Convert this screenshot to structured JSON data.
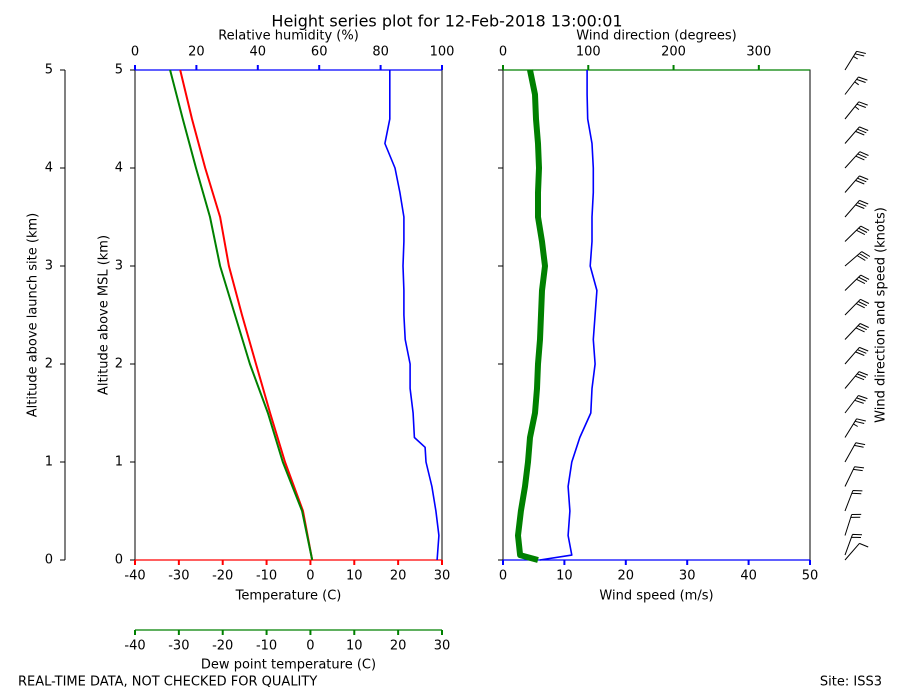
{
  "title": "Height series plot for 12-Feb-2018 13:00:01",
  "footer_left": "REAL-TIME DATA, NOT CHECKED FOR QUALITY",
  "footer_right": "Site: ISS3",
  "outer_axis": {
    "label": "Altitude above launch site (km)",
    "ylim": [
      0,
      5
    ],
    "yticks": [
      0,
      1,
      2,
      3,
      4,
      5
    ]
  },
  "chart_data": [
    {
      "type": "profile",
      "ylabel": "Altitude above MSL (km)",
      "ylim": [
        0,
        5
      ],
      "yticks": [
        0,
        1,
        2,
        3,
        4,
        5
      ],
      "ytick_labels": true,
      "xaxis": {
        "label": "Temperature (C)",
        "color": "#ff0000",
        "xlim": [
          -40,
          30
        ],
        "xticks": [
          -40,
          -30,
          -20,
          -10,
          0,
          10,
          20,
          30
        ]
      },
      "xaxis_top": {
        "label": "Relative humidity (%)",
        "color": "#0000ff",
        "xlim": [
          0,
          100
        ],
        "xticks": [
          0,
          20,
          40,
          60,
          80,
          100
        ]
      },
      "xaxis_bottom2": {
        "label": "Dew point temperature (C)",
        "color": "#008000",
        "xlim": [
          -40,
          30
        ],
        "xticks": [
          -40,
          -30,
          -20,
          -10,
          0,
          10,
          20,
          30
        ]
      },
      "series": [
        {
          "axis": "xaxis",
          "color": "#ff0000",
          "width": 2,
          "values": [
            0.4,
            -1.7,
            -5.8,
            -9.2,
            -12.4,
            -15.6,
            -18.6,
            -20.6,
            -24,
            -27,
            -29.7
          ],
          "altitude": [
            0,
            0.5,
            1,
            1.5,
            2,
            2.5,
            3,
            3.5,
            4,
            4.5,
            5
          ]
        },
        {
          "axis": "xaxis_bottom2",
          "color": "#008000",
          "width": 2,
          "values": [
            0.4,
            -1.9,
            -6.3,
            -9.7,
            -13.8,
            -17.2,
            -20.6,
            -22.9,
            -26.1,
            -29.1,
            -32
          ],
          "altitude": [
            0,
            0.5,
            1,
            1.5,
            2,
            2.5,
            3,
            3.5,
            4,
            4.5,
            5
          ]
        },
        {
          "axis": "xaxis_top",
          "color": "#0000ff",
          "width": 1.6,
          "values": [
            98.4,
            99,
            98,
            96.7,
            94.8,
            94.5,
            91,
            90.6,
            89.6,
            89.6,
            88,
            87.6,
            87.6,
            87.3,
            87.6,
            87.6,
            86.3,
            84.7,
            81.4,
            83,
            83,
            83
          ],
          "altitude": [
            0,
            0.25,
            0.5,
            0.75,
            1,
            1.15,
            1.25,
            1.5,
            1.75,
            2,
            2.25,
            2.5,
            2.75,
            3,
            3.25,
            3.5,
            3.75,
            4,
            4.25,
            4.5,
            4.75,
            5
          ]
        }
      ]
    },
    {
      "type": "profile",
      "ylim": [
        0,
        5
      ],
      "yticks": [
        0,
        1,
        2,
        3,
        4,
        5
      ],
      "ytick_labels": false,
      "xaxis": {
        "label": "Wind speed (m/s)",
        "color": "#0000ff",
        "xlim": [
          0,
          50
        ],
        "xticks": [
          0,
          10,
          20,
          30,
          40,
          50
        ]
      },
      "xaxis_top": {
        "label": "Wind direction (degrees)",
        "color": "#008000",
        "xlim": [
          0,
          360
        ],
        "xticks": [
          0,
          100,
          200,
          300
        ]
      },
      "barbs": true,
      "barb_label": "Wind direction and speed (knots)",
      "series": [
        {
          "axis": "xaxis_top",
          "color": "#008000",
          "width": 6,
          "values": [
            41,
            20,
            17.6,
            21,
            25.8,
            29.3,
            31.7,
            37.5,
            39.9,
            41,
            43.4,
            44.6,
            45.7,
            49.2,
            45.7,
            41,
            41,
            42.2,
            41,
            38.7,
            37.5,
            31.7
          ],
          "altitude": [
            0,
            0.05,
            0.25,
            0.5,
            0.75,
            1,
            1.25,
            1.5,
            1.75,
            2,
            2.25,
            2.5,
            2.75,
            3,
            3.25,
            3.5,
            3.75,
            4,
            4.25,
            4.5,
            4.75,
            5
          ]
        },
        {
          "axis": "xaxis",
          "color": "#0000ff",
          "width": 1.6,
          "values": [
            6,
            11.2,
            10.6,
            10.9,
            10.6,
            11.2,
            12.5,
            14.3,
            14.5,
            15,
            14.7,
            15,
            15.3,
            14.2,
            14.5,
            14.5,
            14.7,
            14.7,
            14.5,
            13.8,
            13.7,
            13.7
          ],
          "altitude": [
            0,
            0.05,
            0.25,
            0.5,
            0.75,
            1,
            1.25,
            1.5,
            1.75,
            2,
            2.25,
            2.5,
            2.75,
            3,
            3.25,
            3.5,
            3.75,
            4,
            4.25,
            4.5,
            4.75,
            5
          ]
        }
      ]
    }
  ]
}
